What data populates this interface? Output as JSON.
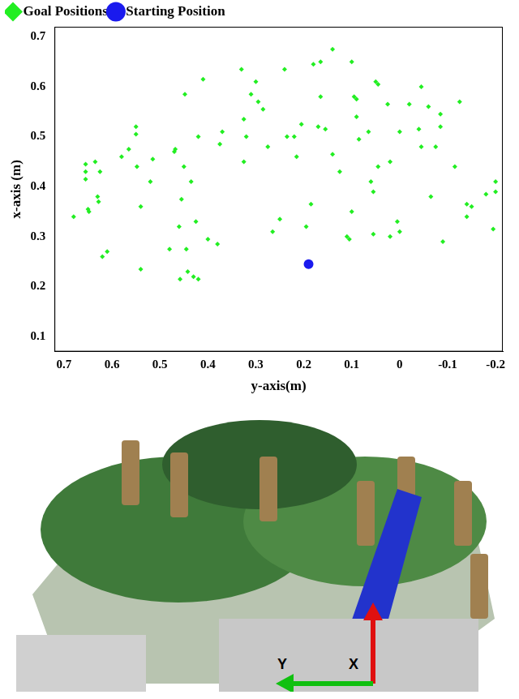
{
  "chart_data": {
    "type": "scatter",
    "x_label": "y-axis(m)",
    "y_label": "x-axis (m)",
    "xlim": [
      0.72,
      -0.215
    ],
    "xticks": [
      0.7,
      0.6,
      0.5,
      0.4,
      0.3,
      0.2,
      0.1,
      0,
      -0.1,
      -0.2
    ],
    "ylim": [
      0.07,
      0.72
    ],
    "yticks": [
      0.1,
      0.2,
      0.3,
      0.4,
      0.5,
      0.6,
      0.7
    ],
    "grid": false,
    "legend": "top-left",
    "series": [
      {
        "name": "Goal Positions",
        "color": "#22ee22",
        "marker": "diamond",
        "x": [
          0.68,
          0.655,
          0.655,
          0.655,
          0.65,
          0.648,
          0.635,
          0.63,
          0.628,
          0.625,
          0.62,
          0.61,
          0.58,
          0.565,
          0.55,
          0.55,
          0.548,
          0.54,
          0.54,
          0.52,
          0.515,
          0.48,
          0.47,
          0.468,
          0.46,
          0.458,
          0.455,
          0.45,
          0.448,
          0.445,
          0.442,
          0.435,
          0.43,
          0.425,
          0.42,
          0.42,
          0.41,
          0.4,
          0.38,
          0.375,
          0.37,
          0.33,
          0.325,
          0.325,
          0.32,
          0.31,
          0.3,
          0.295,
          0.285,
          0.275,
          0.265,
          0.25,
          0.24,
          0.235,
          0.22,
          0.215,
          0.205,
          0.195,
          0.185,
          0.18,
          0.17,
          0.165,
          0.165,
          0.155,
          0.14,
          0.14,
          0.125,
          0.11,
          0.105,
          0.1,
          0.1,
          0.095,
          0.09,
          0.09,
          0.085,
          0.065,
          0.06,
          0.055,
          0.055,
          0.05,
          0.045,
          0.045,
          0.025,
          0.02,
          0.02,
          0.005,
          0.0,
          0.0,
          -0.02,
          -0.04,
          -0.045,
          -0.045,
          -0.06,
          -0.065,
          -0.075,
          -0.085,
          -0.085,
          -0.09,
          -0.115,
          -0.125,
          -0.14,
          -0.14,
          -0.15,
          -0.18,
          -0.195,
          -0.2,
          -0.2
        ],
        "values": [
          0.34,
          0.445,
          0.43,
          0.415,
          0.355,
          0.35,
          0.45,
          0.38,
          0.37,
          0.43,
          0.26,
          0.27,
          0.46,
          0.475,
          0.52,
          0.505,
          0.44,
          0.36,
          0.235,
          0.41,
          0.455,
          0.275,
          0.47,
          0.475,
          0.32,
          0.215,
          0.375,
          0.44,
          0.585,
          0.275,
          0.23,
          0.41,
          0.22,
          0.33,
          0.5,
          0.215,
          0.615,
          0.295,
          0.285,
          0.485,
          0.51,
          0.635,
          0.45,
          0.535,
          0.5,
          0.585,
          0.61,
          0.57,
          0.555,
          0.48,
          0.31,
          0.335,
          0.635,
          0.5,
          0.5,
          0.46,
          0.525,
          0.32,
          0.365,
          0.645,
          0.52,
          0.65,
          0.58,
          0.515,
          0.675,
          0.465,
          0.43,
          0.3,
          0.295,
          0.35,
          0.65,
          0.58,
          0.575,
          0.54,
          0.495,
          0.51,
          0.41,
          0.305,
          0.39,
          0.61,
          0.605,
          0.44,
          0.565,
          0.45,
          0.3,
          0.33,
          0.31,
          0.51,
          0.565,
          0.515,
          0.48,
          0.6,
          0.56,
          0.38,
          0.48,
          0.52,
          0.545,
          0.29,
          0.44,
          0.57,
          0.34,
          0.365,
          0.36,
          0.385,
          0.315,
          0.41,
          0.39
        ]
      },
      {
        "name": "Starting Position",
        "color": "#1a1aee",
        "marker": "circle",
        "x": [
          0.19
        ],
        "values": [
          0.245
        ]
      }
    ]
  },
  "photo": {
    "arrow_labels": {
      "x": "X",
      "y": "Y"
    },
    "x_color": "#e01010",
    "y_color": "#10c010"
  }
}
